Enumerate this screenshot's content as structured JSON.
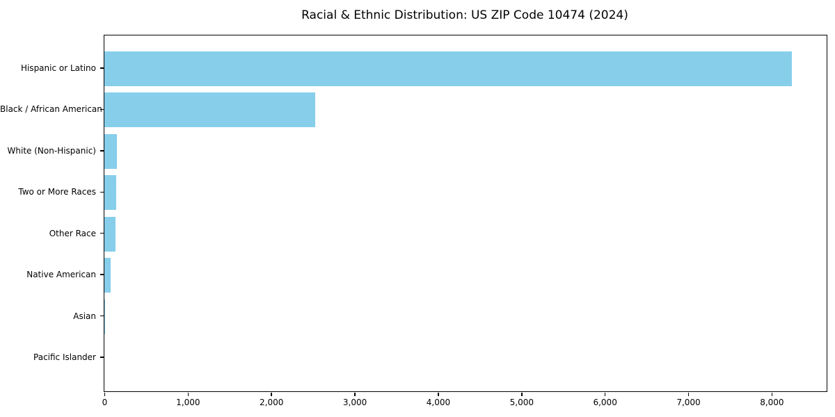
{
  "title": "Racial & Ethnic Distribution: US ZIP Code 10474 (2024)",
  "chart_data": {
    "type": "bar",
    "orientation": "horizontal",
    "title": "Racial & Ethnic Distribution: US ZIP Code 10474 (2024)",
    "xlabel": "",
    "ylabel": "",
    "categories": [
      "Hispanic or Latino",
      "Black / African American",
      "White (Non-Hispanic)",
      "Two or More Races",
      "Other Race",
      "Native American",
      "Asian",
      "Pacific Islander"
    ],
    "values": [
      8245,
      2530,
      150,
      145,
      130,
      75,
      10,
      0
    ],
    "xlim": [
      0,
      8660
    ],
    "x_ticks": [
      0,
      1000,
      2000,
      3000,
      4000,
      5000,
      6000,
      7000,
      8000
    ],
    "x_tick_labels": [
      "0",
      "1,000",
      "2,000",
      "3,000",
      "4,000",
      "5,000",
      "6,000",
      "7,000",
      "8,000"
    ],
    "bar_color": "#87CEEB",
    "grid": false,
    "legend_position": "none"
  }
}
